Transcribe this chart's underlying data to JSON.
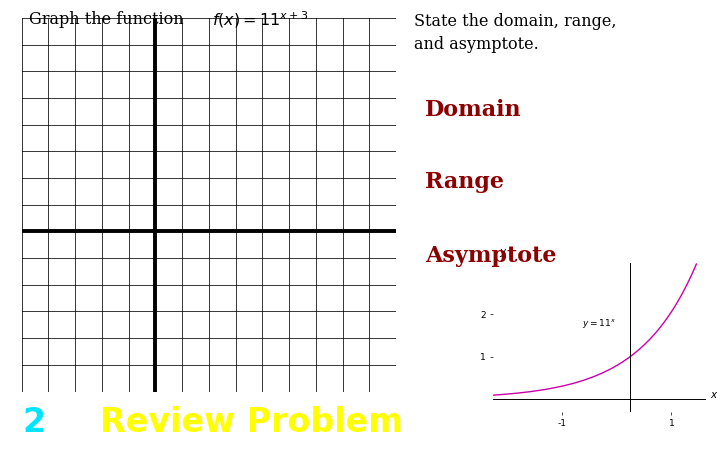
{
  "title_left": "Graph the function",
  "formula_latex": "$f(x) = 11^{x+3}$",
  "title_right_line1": "State the domain, range,",
  "title_right_line2": "and asymptote.",
  "domain_label": "Domain",
  "range_label": "Range",
  "asymptote_label": "Asymptote",
  "review_number": "2",
  "review_text": "Review Problem",
  "bg_color": "#ffffff",
  "grid_color": "#000000",
  "label_color": "#8B0000",
  "bottom_bar_color": "#1c1c1c",
  "bottom_number_color": "#00e5ff",
  "bottom_text_color": "#ffff00",
  "curve_color": "#cc00aa",
  "grid_rows": 14,
  "grid_cols": 14,
  "thick_row": 6,
  "thick_col": 5,
  "small_plot_xlim": [
    -1.0,
    0.55
  ],
  "small_plot_ylim": [
    -0.3,
    3.2
  ],
  "small_ann_text": "$y = 11^x$"
}
